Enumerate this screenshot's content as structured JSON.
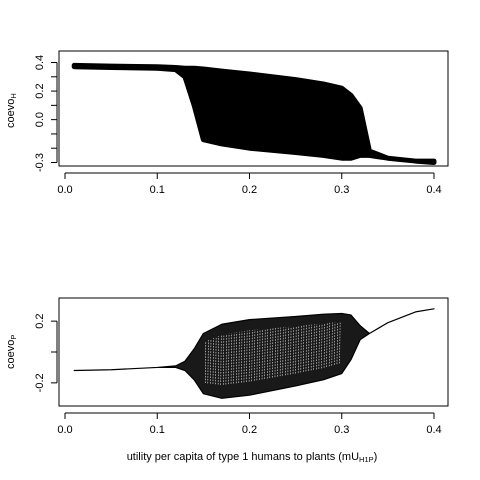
{
  "chart_data": [
    {
      "type": "area",
      "ylabel": "coevo",
      "ylabel_sub": "H",
      "xlabel": "",
      "xlim": [
        0,
        0.4
      ],
      "ylim": [
        -0.3,
        0.4
      ],
      "x_ticks": [
        "0.0",
        "0.1",
        "0.2",
        "0.3",
        "0.4"
      ],
      "y_ticks": [
        "-0.3",
        "0.0",
        "0.2",
        "0.4"
      ],
      "y_tick_values": [
        -0.3,
        0.0,
        0.2,
        0.4
      ],
      "y_minor_tick_values": [
        -0.2,
        -0.1,
        0.1,
        0.3
      ],
      "series": [
        {
          "x": [
            0.01,
            0.05,
            0.1,
            0.12,
            0.13,
            0.14,
            0.15,
            0.17,
            0.2,
            0.25,
            0.28,
            0.3,
            0.31,
            0.32,
            0.33,
            0.35,
            0.38,
            0.4
          ],
          "upper": [
            0.38,
            0.375,
            0.37,
            0.365,
            0.36,
            0.36,
            0.355,
            0.34,
            0.32,
            0.28,
            0.25,
            0.22,
            0.17,
            0.08,
            -0.22,
            -0.27,
            -0.29,
            -0.29
          ],
          "lower": [
            0.37,
            0.365,
            0.36,
            0.35,
            0.3,
            0.1,
            -0.14,
            -0.17,
            -0.2,
            -0.23,
            -0.25,
            -0.27,
            -0.27,
            -0.25,
            -0.25,
            -0.27,
            -0.29,
            -0.3
          ]
        }
      ]
    },
    {
      "type": "area",
      "ylabel": "coevo",
      "ylabel_sub": "P",
      "xlabel": "utility per capita of type 1 humans to plants (mU",
      "xlabel_sub": "H1P",
      "xlabel_end": ")",
      "xlim": [
        0,
        0.4
      ],
      "ylim": [
        -0.35,
        0.35
      ],
      "x_ticks": [
        "0.0",
        "0.1",
        "0.2",
        "0.3",
        "0.4"
      ],
      "y_ticks": [
        "-0.2",
        "0.2"
      ],
      "y_tick_values": [
        -0.2,
        0.2
      ],
      "y_minor_tick_values": [
        0.0
      ],
      "series": [
        {
          "x": [
            0.01,
            0.05,
            0.1,
            0.12,
            0.13,
            0.14,
            0.15,
            0.17,
            0.2,
            0.25,
            0.28,
            0.3,
            0.31,
            0.32,
            0.33,
            0.35,
            0.38,
            0.4
          ],
          "upper": [
            -0.12,
            -0.115,
            -0.1,
            -0.09,
            -0.06,
            0.02,
            0.12,
            0.18,
            0.21,
            0.23,
            0.245,
            0.25,
            0.24,
            0.17,
            0.12,
            0.19,
            0.26,
            0.28
          ],
          "lower": [
            -0.12,
            -0.115,
            -0.1,
            -0.1,
            -0.12,
            -0.18,
            -0.27,
            -0.3,
            -0.28,
            -0.22,
            -0.18,
            -0.14,
            -0.05,
            0.08,
            0.12,
            0.19,
            0.26,
            0.28
          ]
        }
      ]
    }
  ]
}
